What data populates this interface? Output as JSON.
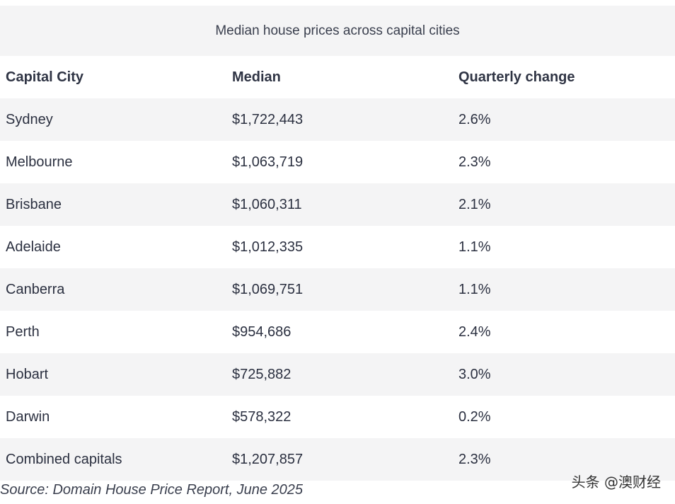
{
  "caption": "Median house prices across capital cities",
  "table": {
    "headers": [
      "Capital City",
      "Median",
      "Quarterly change"
    ],
    "rows": [
      [
        "Sydney",
        "$1,722,443",
        "2.6%"
      ],
      [
        "Melbourne",
        "$1,063,719",
        "2.3%"
      ],
      [
        "Brisbane",
        "$1,060,311",
        "2.1%"
      ],
      [
        "Adelaide",
        "$1,012,335",
        "1.1%"
      ],
      [
        "Canberra",
        "$1,069,751",
        "1.1%"
      ],
      [
        "Perth",
        "$954,686",
        "2.4%"
      ],
      [
        "Hobart",
        "$725,882",
        "3.0%"
      ],
      [
        "Darwin",
        "$578,322",
        "0.2%"
      ],
      [
        "Combined capitals",
        "$1,207,857",
        "2.3%"
      ]
    ]
  },
  "source": "Source: Domain House Price Report, June 2025",
  "watermark": "头条 @澳财经"
}
